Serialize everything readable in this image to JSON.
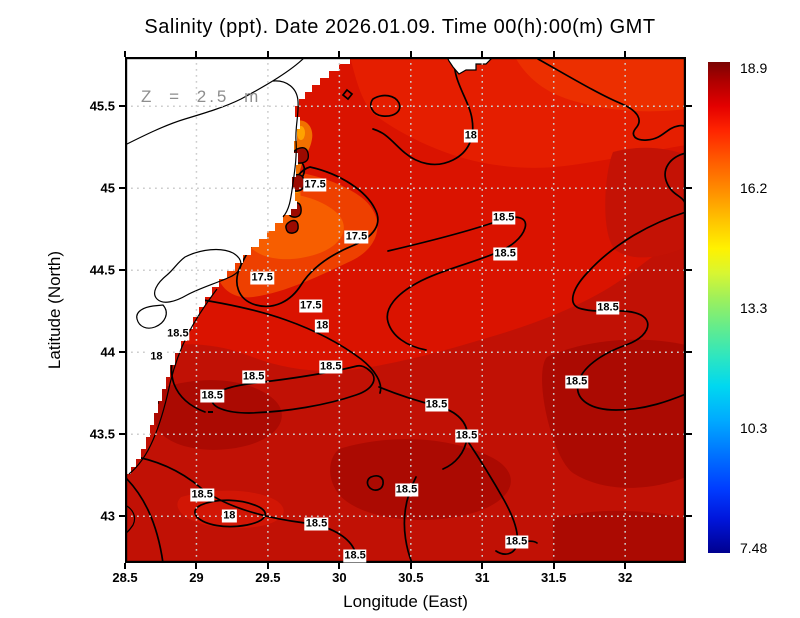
{
  "title": "Salinity (ppt). Date 2026.01.09. Time 00(h):00(m) GMT",
  "annotation": "Z = 2.5 m",
  "axes": {
    "x": {
      "label": "Longitude (East)"
    },
    "y": {
      "label": "Latitude (North)"
    }
  },
  "colorbar": {
    "labels": [
      "18.9",
      "16.2",
      "13.3",
      "10.3",
      "7.48"
    ],
    "min": 7.48,
    "max": 18.9,
    "units": "ppt",
    "colormap": "jet"
  },
  "chart_data": {
    "type": "heatmap",
    "title": "Salinity (ppt). Date 2026.01.09. Time 00(h):00(m) GMT",
    "field": "salinity",
    "units": "ppt",
    "depth_label": "Z = 2.5 m",
    "depth_m": 2.5,
    "date": "2026.01.09",
    "time": "00(h):00(m) GMT",
    "xlabel": "Longitude (East)",
    "ylabel": "Latitude (North)",
    "xlim": [
      28.5,
      32.43
    ],
    "ylim": [
      42.72,
      45.8
    ],
    "x_ticks": [
      "28.5",
      "29",
      "29.5",
      "30",
      "30.5",
      "31",
      "31.5",
      "32"
    ],
    "y_ticks": [
      "45.5",
      "45",
      "44.5",
      "44",
      "43.5",
      "43"
    ],
    "grid": true,
    "colorbar_range": [
      7.48,
      18.9
    ],
    "colorbar_ticks": [
      "18.9",
      "16.2",
      "13.3",
      "10.3",
      "7.48"
    ],
    "contour_levels_labeled": [
      17.5,
      18,
      18.5
    ],
    "contour_labels": [
      {
        "value": "17.5",
        "lon": 29.83,
        "lat": 45.02
      },
      {
        "value": "17.5",
        "lon": 30.12,
        "lat": 44.7
      },
      {
        "value": "17.5",
        "lon": 29.46,
        "lat": 44.45
      },
      {
        "value": "17.5",
        "lon": 29.8,
        "lat": 44.28
      },
      {
        "value": "18",
        "lon": 30.92,
        "lat": 45.32
      },
      {
        "value": "18",
        "lon": 29.88,
        "lat": 44.16
      },
      {
        "value": "18",
        "lon": 28.72,
        "lat": 43.97
      },
      {
        "value": "18",
        "lon": 29.23,
        "lat": 43.0
      },
      {
        "value": "18.5",
        "lon": 31.15,
        "lat": 44.82
      },
      {
        "value": "18.5",
        "lon": 31.16,
        "lat": 44.6
      },
      {
        "value": "18.5",
        "lon": 31.88,
        "lat": 44.27
      },
      {
        "value": "18.5",
        "lon": 28.87,
        "lat": 44.11
      },
      {
        "value": "18.5",
        "lon": 29.94,
        "lat": 43.91
      },
      {
        "value": "18.5",
        "lon": 29.4,
        "lat": 43.85
      },
      {
        "value": "18.5",
        "lon": 29.11,
        "lat": 43.73
      },
      {
        "value": "18.5",
        "lon": 30.68,
        "lat": 43.68
      },
      {
        "value": "18.5",
        "lon": 30.89,
        "lat": 43.49
      },
      {
        "value": "18.5",
        "lon": 31.66,
        "lat": 43.82
      },
      {
        "value": "18.5",
        "lon": 30.47,
        "lat": 43.16
      },
      {
        "value": "18.5",
        "lon": 29.04,
        "lat": 43.13
      },
      {
        "value": "18.5",
        "lon": 29.84,
        "lat": 42.95
      },
      {
        "value": "18.5",
        "lon": 30.11,
        "lat": 42.76
      },
      {
        "value": "18.5",
        "lon": 31.24,
        "lat": 42.84
      }
    ]
  }
}
